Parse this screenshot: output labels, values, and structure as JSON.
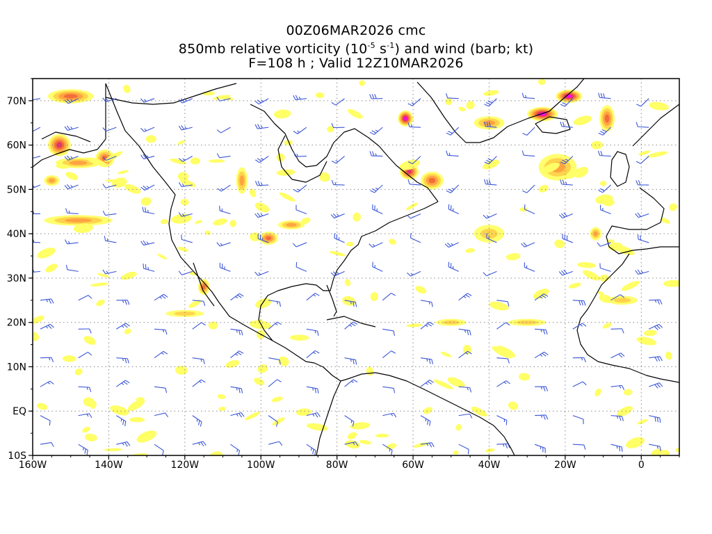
{
  "title": {
    "line1": "00Z06MAR2026 cmc",
    "line2_prefix": "850mb relative vorticity (10",
    "line2_exp1": "-5",
    "line2_mid": " s",
    "line2_exp2": "-1",
    "line2_suffix": ") and wind (barb; kt)",
    "line3": "F=108 h ; Valid 12Z10MAR2026"
  },
  "map": {
    "lon_range": [
      -160,
      10
    ],
    "lat_range": [
      -10,
      75
    ],
    "lon_ticks": [
      {
        "value": -160,
        "label": "160W"
      },
      {
        "value": -140,
        "label": "140W"
      },
      {
        "value": -120,
        "label": "120W"
      },
      {
        "value": -100,
        "label": "100W"
      },
      {
        "value": -80,
        "label": "80W"
      },
      {
        "value": -60,
        "label": "60W"
      },
      {
        "value": -40,
        "label": "40W"
      },
      {
        "value": -20,
        "label": "20W"
      },
      {
        "value": 0,
        "label": "0"
      }
    ],
    "lat_ticks": [
      {
        "value": -10,
        "label": "10S"
      },
      {
        "value": 0,
        "label": "EQ"
      },
      {
        "value": 10,
        "label": "10N"
      },
      {
        "value": 20,
        "label": "20N"
      },
      {
        "value": 30,
        "label": "30N"
      },
      {
        "value": 40,
        "label": "40N"
      },
      {
        "value": 50,
        "label": "50N"
      },
      {
        "value": 60,
        "label": "60N"
      },
      {
        "value": 70,
        "label": "70N"
      }
    ],
    "colors": {
      "barb": "#3a55d8",
      "coast": "#000000",
      "grid": "#888888",
      "fill_levels": [
        "#ffff66",
        "#ffd24a",
        "#ffa040",
        "#f06a3a",
        "#e0306a",
        "#ff00ff"
      ]
    },
    "vorticity_features": [
      {
        "lon": -150,
        "lat": 71,
        "rx": 6,
        "ry": 1.6,
        "level": 3
      },
      {
        "lon": -153,
        "lat": 60,
        "rx": 3,
        "ry": 2.5,
        "level": 4
      },
      {
        "lon": -141,
        "lat": 57,
        "rx": 2.5,
        "ry": 2,
        "level": 3
      },
      {
        "lon": -148,
        "lat": 56,
        "rx": 6,
        "ry": 1.2,
        "level": 2
      },
      {
        "lon": -155,
        "lat": 52,
        "rx": 2,
        "ry": 1.2,
        "level": 2
      },
      {
        "lon": -148,
        "lat": 43,
        "rx": 9,
        "ry": 1.2,
        "level": 2
      },
      {
        "lon": -105,
        "lat": 52,
        "rx": 1.5,
        "ry": 3,
        "level": 2
      },
      {
        "lon": -98,
        "lat": 39,
        "rx": 2.5,
        "ry": 1.5,
        "level": 3
      },
      {
        "lon": -92,
        "lat": 42,
        "rx": 3.5,
        "ry": 1,
        "level": 2
      },
      {
        "lon": -115,
        "lat": 28,
        "rx": 1.5,
        "ry": 1.8,
        "level": 3
      },
      {
        "lon": -62,
        "lat": 66,
        "rx": 2,
        "ry": 1.8,
        "level": 5
      },
      {
        "lon": -61,
        "lat": 54,
        "rx": 2.5,
        "ry": 1.8,
        "level": 4
      },
      {
        "lon": -55,
        "lat": 52,
        "rx": 3,
        "ry": 2,
        "level": 3
      },
      {
        "lon": -26,
        "lat": 67,
        "rx": 4,
        "ry": 1.6,
        "level": 5
      },
      {
        "lon": -19,
        "lat": 71,
        "rx": 3.5,
        "ry": 1.5,
        "level": 5
      },
      {
        "lon": -9,
        "lat": 66,
        "rx": 2,
        "ry": 3,
        "level": 3
      },
      {
        "lon": -22,
        "lat": 55,
        "rx": 5,
        "ry": 3,
        "level": 2
      },
      {
        "lon": -12,
        "lat": 40,
        "rx": 1.5,
        "ry": 1.5,
        "level": 2
      },
      {
        "lon": -40,
        "lat": 65,
        "rx": 4,
        "ry": 1.5,
        "level": 2
      },
      {
        "lon": -120,
        "lat": 22,
        "rx": 5,
        "ry": 0.8,
        "level": 1
      },
      {
        "lon": -50,
        "lat": 20,
        "rx": 4,
        "ry": 0.8,
        "level": 1
      },
      {
        "lon": -30,
        "lat": 20,
        "rx": 5,
        "ry": 0.8,
        "level": 1
      },
      {
        "lon": -40,
        "lat": 40,
        "rx": 4,
        "ry": 2,
        "level": 1
      },
      {
        "lon": -5,
        "lat": 25,
        "rx": 4,
        "ry": 1,
        "level": 1
      }
    ]
  }
}
